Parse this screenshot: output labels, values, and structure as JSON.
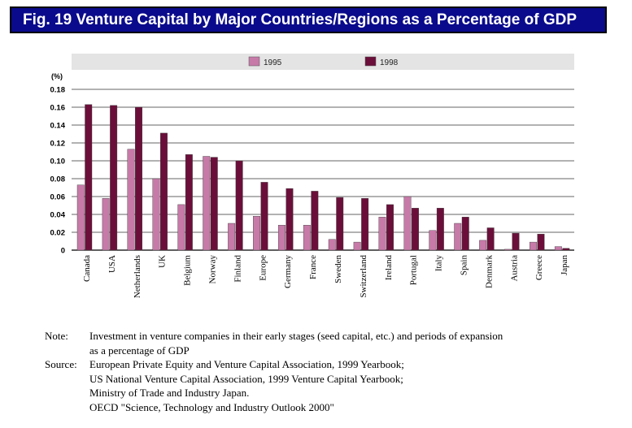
{
  "title": "Fig. 19    Venture Capital by Major Countries/Regions as a Percentage of GDP",
  "chart_data": {
    "type": "bar",
    "unit_label": "(%)",
    "categories": [
      "Canada",
      "USA",
      "Netherlands",
      "UK",
      "Belgium",
      "Norway",
      "Finland",
      "Europe",
      "Germany",
      "France",
      "Sweden",
      "Switzerland",
      "Ireland",
      "Portugal",
      "Italy",
      "Spain",
      "Denmark",
      "Austria",
      "Greece",
      "Japan"
    ],
    "series": [
      {
        "name": "1995",
        "color": "#c77aa8",
        "values": [
          0.073,
          0.058,
          0.113,
          0.08,
          0.051,
          0.105,
          0.03,
          0.038,
          0.028,
          0.028,
          0.012,
          0.009,
          0.037,
          0.06,
          0.022,
          0.03,
          0.011,
          0.001,
          0.009,
          0.004
        ]
      },
      {
        "name": "1998",
        "color": "#6b0f3a",
        "values": [
          0.163,
          0.162,
          0.16,
          0.131,
          0.107,
          0.104,
          0.1,
          0.076,
          0.069,
          0.066,
          0.059,
          0.058,
          0.051,
          0.047,
          0.047,
          0.037,
          0.025,
          0.019,
          0.018,
          0.002
        ]
      }
    ],
    "yticks": [
      "0",
      "0.02",
      "0.04",
      "0.06",
      "0.08",
      "0.10",
      "0.12",
      "0.14",
      "0.16",
      "0.18"
    ],
    "ylim": [
      0,
      0.18
    ],
    "grid": true,
    "legend_position": "top"
  },
  "notes": {
    "note_label": "Note:",
    "note_lines": [
      "Investment in venture companies in their early stages (seed capital, etc.) and periods of expansion",
      "as a percentage of GDP"
    ],
    "source_label": "Source:",
    "source_lines": [
      "European Private Equity and Venture Capital Association, 1999 Yearbook;",
      "US National Venture Capital Association, 1999 Venture Capital Yearbook;",
      "Ministry of Trade and Industry Japan.",
      "OECD \"Science, Technology and Industry Outlook 2000\""
    ]
  }
}
